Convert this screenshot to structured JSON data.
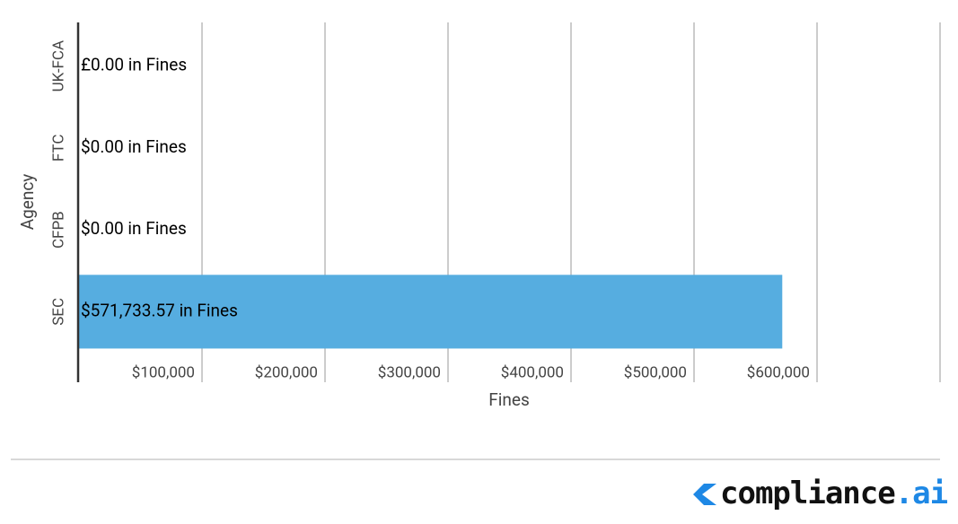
{
  "chart_data": {
    "type": "hbar",
    "categories": [
      "UK-FCA",
      "FTC",
      "CFPB",
      "SEC"
    ],
    "values": [
      0,
      0,
      0,
      571733.57
    ],
    "value_labels": [
      "£0.00 in Fines",
      "$0.00 in Fines",
      "$0.00 in Fines",
      "$571,733.57 in Fines"
    ],
    "color": "#56ade0",
    "xlabel": "Fines",
    "ylabel": "Agency",
    "xlim": [
      0,
      700000
    ],
    "xticks": [
      {
        "value": 100000,
        "label": "$100,000"
      },
      {
        "value": 200000,
        "label": "$200,000"
      },
      {
        "value": 300000,
        "label": "$300,000"
      },
      {
        "value": 400000,
        "label": "$400,000"
      },
      {
        "value": 500000,
        "label": "$500,000"
      },
      {
        "value": 600000,
        "label": "$600,000"
      }
    ],
    "grid": true
  },
  "footer": {
    "brand": "compliance",
    "brand_suffix": ".ai"
  }
}
